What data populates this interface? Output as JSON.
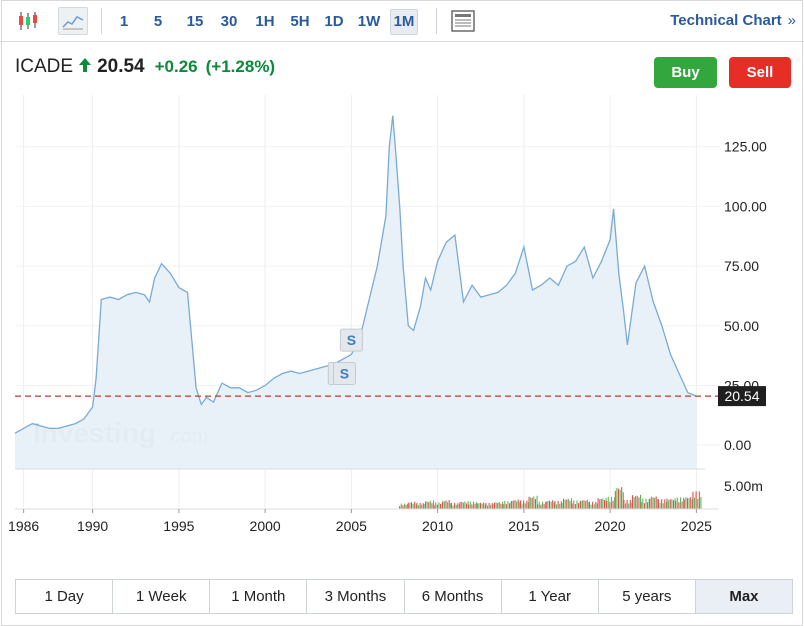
{
  "toolbar": {
    "intervals": [
      "1",
      "5",
      "15",
      "30",
      "1H",
      "5H",
      "1D",
      "1W",
      "1M"
    ],
    "active_interval": "1M",
    "technical_chart_label": "Technical Chart",
    "technical_chart_arrow": "»"
  },
  "quote": {
    "symbol": "ICADE",
    "price": "20.54",
    "change": "+0.26",
    "change_pct": "(+1.28%)",
    "direction": "up"
  },
  "actions": {
    "buy_label": "Buy",
    "sell_label": "Sell"
  },
  "watermark": {
    "brand": "Investing",
    "suffix": ".com"
  },
  "ranges": [
    "1 Day",
    "1 Week",
    "1 Month",
    "3 Months",
    "6 Months",
    "1 Year",
    "5 years",
    "Max"
  ],
  "active_range": "Max",
  "colors": {
    "accent": "#2a5a9e",
    "up": "#0a8a3a",
    "buy": "#34a63e",
    "sell": "#e62e26",
    "line": "#7aaad4",
    "fill": "#e6eff7",
    "price_line": "#c0392b",
    "vol_up": "#5cb85c",
    "vol_down": "#d9534f"
  },
  "chart_data": {
    "type": "area",
    "series": [
      {
        "x": [
          1985.5,
          1986.0,
          1986.5,
          1987.0,
          1987.5,
          1988.0,
          1988.5,
          1989.0,
          1989.5,
          1990.0,
          1990.2,
          1990.5,
          1991.0,
          1991.5,
          1992.0,
          1992.5,
          1993.0,
          1993.3,
          1993.6,
          1994.0,
          1994.5,
          1995.0,
          1995.5,
          1996.0,
          1996.3,
          1996.6,
          1997.0,
          1997.5,
          1998.0,
          1998.5,
          1999.0,
          1999.5,
          2000.0,
          2000.5,
          2001.0,
          2001.5,
          2002.0,
          2002.5,
          2003.0,
          2003.5,
          2004.0,
          2004.5,
          2005.0,
          2005.5,
          2006.0,
          2006.5,
          2007.0,
          2007.2,
          2007.4,
          2007.6,
          2007.8,
          2008.0,
          2008.3,
          2008.6,
          2009.0,
          2009.3,
          2009.6,
          2010.0,
          2010.5,
          2011.0,
          2011.5,
          2012.0,
          2012.5,
          2013.0,
          2013.5,
          2014.0,
          2014.5,
          2015.0,
          2015.5,
          2016.0,
          2016.5,
          2017.0,
          2017.5,
          2018.0,
          2018.5,
          2019.0,
          2019.5,
          2020.0,
          2020.2,
          2020.5,
          2020.8,
          2021.0,
          2021.5,
          2022.0,
          2022.5,
          2023.0,
          2023.5,
          2024.0,
          2024.5,
          2025.0
        ],
        "y": [
          5,
          7,
          9,
          8,
          7,
          7,
          8,
          9,
          11,
          16,
          28,
          61,
          62,
          61,
          63,
          64,
          63,
          60,
          70,
          76,
          72,
          66,
          64,
          24,
          17,
          20,
          18,
          26,
          24,
          24,
          22,
          23,
          25,
          28,
          30,
          31,
          30,
          31,
          32,
          33,
          34,
          36,
          38,
          45,
          60,
          75,
          96,
          125,
          138,
          120,
          100,
          75,
          50,
          48,
          58,
          70,
          65,
          77,
          85,
          88,
          60,
          67,
          62,
          63,
          64,
          67,
          72,
          83,
          65,
          67,
          70,
          67,
          75,
          77,
          83,
          70,
          77,
          86,
          99,
          72,
          55,
          42,
          68,
          75,
          60,
          50,
          38,
          30,
          22,
          20.54
        ]
      }
    ],
    "volume": {
      "unit_label": "5.00m",
      "x": [
        2008,
        2008.5,
        2009,
        2009.5,
        2010,
        2010.5,
        2011,
        2011.5,
        2012,
        2012.5,
        2013,
        2013.5,
        2014,
        2014.5,
        2015,
        2015.5,
        2016,
        2016.5,
        2017,
        2017.5,
        2018,
        2018.5,
        2019,
        2019.5,
        2020,
        2020.5,
        2021,
        2021.5,
        2022,
        2022.5,
        2023,
        2023.5,
        2024,
        2024.5,
        2025
      ],
      "values": [
        0.9,
        1.2,
        1.0,
        1.4,
        1.1,
        1.5,
        1.0,
        1.3,
        1.2,
        1.1,
        1.0,
        1.2,
        1.3,
        1.6,
        1.4,
        2.2,
        1.2,
        1.5,
        1.3,
        1.8,
        1.4,
        1.6,
        1.2,
        1.9,
        2.0,
        3.8,
        1.5,
        2.4,
        1.7,
        2.2,
        1.6,
        1.8,
        1.9,
        2.1,
        2.9
      ]
    },
    "current_price": 20.54,
    "current_price_label": "20.54",
    "markers": [
      {
        "x": 2005.0,
        "y": 44,
        "label": "S"
      },
      {
        "x": 2004.3,
        "y": 30,
        "label": "S"
      },
      {
        "x": 2004.6,
        "y": 30,
        "label": "S"
      }
    ],
    "xticks": [
      1986,
      1990,
      1995,
      2000,
      2005,
      2010,
      2015,
      2020,
      2025
    ],
    "xtick_labels": [
      "1986",
      "1990",
      "1995",
      "2000",
      "2005",
      "2010",
      "2015",
      "2020",
      "2025"
    ],
    "yticks": [
      0,
      25,
      50,
      75,
      100,
      125
    ],
    "ytick_labels": [
      "0.00",
      "25.00",
      "50.00",
      "75.00",
      "100.00",
      "125.00"
    ],
    "xlim": [
      1985.5,
      2025.5
    ],
    "ylim": [
      -10,
      145
    ],
    "grid": true
  }
}
